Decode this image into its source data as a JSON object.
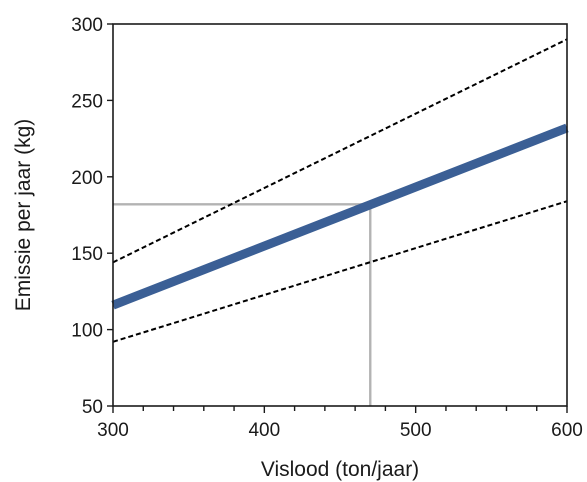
{
  "chart_data": {
    "type": "line",
    "title": "",
    "xlabel": "Vislood (ton/jaar)",
    "ylabel": "Emissie per jaar (kg)",
    "xlim": [
      300,
      600
    ],
    "ylim": [
      50,
      300
    ],
    "xticks": [
      300,
      400,
      500,
      600
    ],
    "yticks": [
      50,
      100,
      150,
      200,
      250,
      300
    ],
    "x_minor_step": 20,
    "grid": false,
    "legend": "none",
    "series": [
      {
        "role": "central",
        "style": "solid",
        "color": "#3b5f95",
        "x": [
          300,
          600
        ],
        "y": [
          116,
          232
        ]
      },
      {
        "role": "upper",
        "style": "dashed",
        "color": "#000000",
        "x": [
          300,
          600
        ],
        "y": [
          144,
          290
        ]
      },
      {
        "role": "lower",
        "style": "dashed",
        "color": "#000000",
        "x": [
          300,
          600
        ],
        "y": [
          92,
          184
        ]
      }
    ],
    "reference": {
      "color": "#b3b3b3",
      "x": 470,
      "y": 182
    }
  }
}
